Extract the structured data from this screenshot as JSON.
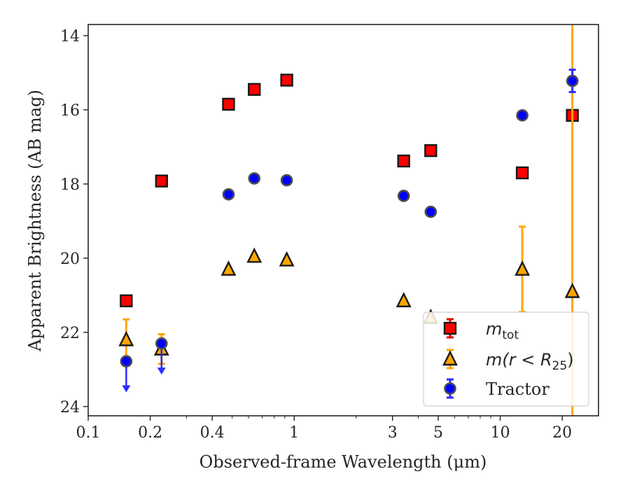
{
  "chart_data": {
    "type": "scatter",
    "title": "",
    "xlabel": "Observed-frame Wavelength (μm)",
    "ylabel": "Apparent Brightness (AB mag)",
    "xscale": "log",
    "xlim": [
      0.1,
      30
    ],
    "ylim": [
      24.25,
      13.7
    ],
    "y_inverted": true,
    "grid": false,
    "legend_position": "lower-right",
    "x_ticks": [
      {
        "value": 0.1,
        "label": "0.1"
      },
      {
        "value": 0.2,
        "label": "0.2"
      },
      {
        "value": 0.4,
        "label": "0.4"
      },
      {
        "value": 1,
        "label": "1"
      },
      {
        "value": 3,
        "label": "3"
      },
      {
        "value": 5,
        "label": "5"
      },
      {
        "value": 10,
        "label": "10"
      },
      {
        "value": 20,
        "label": "20"
      }
    ],
    "y_ticks": [
      {
        "value": 14,
        "label": "14"
      },
      {
        "value": 16,
        "label": "16"
      },
      {
        "value": 18,
        "label": "18"
      },
      {
        "value": 20,
        "label": "20"
      },
      {
        "value": 22,
        "label": "22"
      },
      {
        "value": 24,
        "label": "24"
      }
    ],
    "series": [
      {
        "key": "mtot",
        "legend_main": "m",
        "legend_sub": "tot",
        "marker": "square",
        "color": "#ff0000",
        "err_color": "#e00000",
        "points": [
          {
            "x": 0.153,
            "y": 21.15,
            "err": 0.06
          },
          {
            "x": 0.227,
            "y": 17.92,
            "err": 0.03
          },
          {
            "x": 0.48,
            "y": 15.85,
            "err": 0.02
          },
          {
            "x": 0.64,
            "y": 15.45,
            "err": 0.02
          },
          {
            "x": 0.92,
            "y": 15.2,
            "err": 0.02
          },
          {
            "x": 3.4,
            "y": 17.38,
            "err": 0.03
          },
          {
            "x": 4.6,
            "y": 17.1,
            "err": 0.03
          },
          {
            "x": 12.8,
            "y": 17.7,
            "err": 0.05
          },
          {
            "x": 22.4,
            "y": 16.15,
            "err": 0.08
          }
        ]
      },
      {
        "key": "mr25",
        "legend_main": "m(r < R",
        "legend_sub": "25",
        "legend_close": ")",
        "marker": "triangle",
        "color": "#ffa500",
        "err_color": "#ffa500",
        "points": [
          {
            "x": 0.153,
            "y": 22.2,
            "err": 0.55
          },
          {
            "x": 0.227,
            "y": 22.45,
            "err": 0.4
          },
          {
            "x": 0.48,
            "y": 20.3,
            "err": 0.03
          },
          {
            "x": 0.64,
            "y": 19.95,
            "err": 0.03
          },
          {
            "x": 0.92,
            "y": 20.05,
            "err": 0.03
          },
          {
            "x": 3.4,
            "y": 21.15,
            "err": 0.05
          },
          {
            "x": 4.6,
            "y": 21.6,
            "err": 0.08
          },
          {
            "x": 12.8,
            "y": 20.3,
            "err": 1.15
          },
          {
            "x": 22.4,
            "y": 20.9,
            "err": 9
          }
        ]
      },
      {
        "key": "tractor",
        "legend_main": "Tractor",
        "marker": "circle",
        "color": "#0000ff",
        "err_color": "#2b2bff",
        "points": [
          {
            "x": 0.153,
            "y": 22.78,
            "err": 0.0,
            "upper_limit": true
          },
          {
            "x": 0.227,
            "y": 22.3,
            "err": 0.0,
            "upper_limit": true
          },
          {
            "x": 0.48,
            "y": 18.28,
            "err": 0.02
          },
          {
            "x": 0.64,
            "y": 17.85,
            "err": 0.02
          },
          {
            "x": 0.92,
            "y": 17.9,
            "err": 0.02
          },
          {
            "x": 3.4,
            "y": 18.32,
            "err": 0.02
          },
          {
            "x": 4.6,
            "y": 18.75,
            "err": 0.03
          },
          {
            "x": 12.8,
            "y": 16.15,
            "err": 0.03
          },
          {
            "x": 22.4,
            "y": 15.22,
            "err": 0.3
          }
        ]
      }
    ]
  }
}
